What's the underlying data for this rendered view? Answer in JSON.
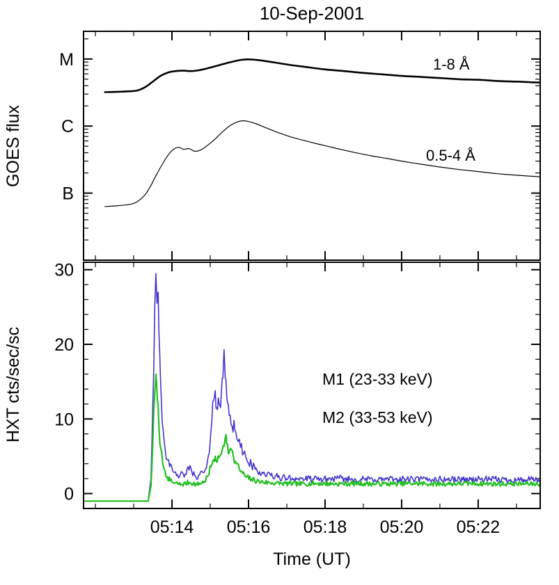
{
  "title": "10-Sep-2001",
  "chart_data": {
    "type": "line",
    "title": "10-Sep-2001",
    "time_unit": "minutes after 05:00 UT",
    "x_axis": {
      "label": "Time (UT)",
      "xlim": [
        11.69,
        23.62
      ],
      "major_ticks": [
        {
          "v": 14,
          "label": "05:14"
        },
        {
          "v": 16,
          "label": "05:16"
        },
        {
          "v": 18,
          "label": "05:18"
        },
        {
          "v": 20,
          "label": "05:20"
        },
        {
          "v": 22,
          "label": "05:22"
        }
      ],
      "minor_ticks": [
        12,
        13,
        15,
        17,
        19,
        21,
        23
      ]
    },
    "panels": [
      {
        "id": "goes",
        "ylabel": "GOES flux",
        "yscale": "log",
        "ylim": [
          1e-08,
          2.59e-05
        ],
        "yticks": [
          {
            "v": 1e-05,
            "label": "M"
          },
          {
            "v": 1e-06,
            "label": "C"
          },
          {
            "v": 1e-07,
            "label": "B"
          }
        ],
        "series": [
          {
            "label": "1-8 Å",
            "color": "#000000",
            "width": 2.6,
            "points": [
              [
                12.25,
                3.2e-06
              ],
              [
                12.6,
                3.25e-06
              ],
              [
                12.9,
                3.3e-06
              ],
              [
                13.1,
                3.4e-06
              ],
              [
                13.3,
                3.8e-06
              ],
              [
                13.5,
                4.6e-06
              ],
              [
                13.7,
                5.6e-06
              ],
              [
                13.9,
                6.3e-06
              ],
              [
                14.1,
                6.6e-06
              ],
              [
                14.3,
                6.7e-06
              ],
              [
                14.5,
                6.6e-06
              ],
              [
                14.7,
                6.8e-06
              ],
              [
                14.9,
                7.2e-06
              ],
              [
                15.2,
                8e-06
              ],
              [
                15.5,
                8.9e-06
              ],
              [
                15.8,
                9.7e-06
              ],
              [
                16.0,
                9.9e-06
              ],
              [
                16.2,
                9.7e-06
              ],
              [
                16.5,
                9.2e-06
              ],
              [
                17.0,
                8.3e-06
              ],
              [
                17.5,
                7.6e-06
              ],
              [
                18.0,
                7e-06
              ],
              [
                18.5,
                6.6e-06
              ],
              [
                19.0,
                6.2e-06
              ],
              [
                19.5,
                5.9e-06
              ],
              [
                20.0,
                5.6e-06
              ],
              [
                20.5,
                5.4e-06
              ],
              [
                21.0,
                5.2e-06
              ],
              [
                21.5,
                5e-06
              ],
              [
                22.0,
                4.9e-06
              ],
              [
                22.5,
                4.7e-06
              ],
              [
                23.0,
                4.6e-06
              ],
              [
                23.4,
                4.5e-06
              ],
              [
                23.62,
                4.45e-06
              ]
            ]
          },
          {
            "label": "0.5-4 Å",
            "color": "#000000",
            "width": 1.2,
            "points": [
              [
                12.25,
                6.3e-08
              ],
              [
                12.6,
                6.5e-08
              ],
              [
                12.9,
                6.8e-08
              ],
              [
                13.1,
                7.5e-08
              ],
              [
                13.3,
                9.5e-08
              ],
              [
                13.45,
                1.3e-07
              ],
              [
                13.6,
                1.9e-07
              ],
              [
                13.75,
                2.7e-07
              ],
              [
                13.9,
                3.7e-07
              ],
              [
                14.0,
                4.3e-07
              ],
              [
                14.1,
                4.7e-07
              ],
              [
                14.2,
                4.8e-07
              ],
              [
                14.3,
                4.5e-07
              ],
              [
                14.45,
                4.6e-07
              ],
              [
                14.6,
                4.2e-07
              ],
              [
                14.75,
                4.4e-07
              ],
              [
                14.9,
                5e-07
              ],
              [
                15.1,
                6.2e-07
              ],
              [
                15.3,
                8e-07
              ],
              [
                15.5,
                1e-06
              ],
              [
                15.7,
                1.15e-06
              ],
              [
                15.85,
                1.2e-06
              ],
              [
                16.0,
                1.17e-06
              ],
              [
                16.2,
                1.08e-06
              ],
              [
                16.5,
                9.2e-07
              ],
              [
                16.8,
                7.9e-07
              ],
              [
                17.1,
                6.9e-07
              ],
              [
                17.4,
                6.2e-07
              ],
              [
                17.7,
                5.6e-07
              ],
              [
                18.0,
                5.1e-07
              ],
              [
                18.4,
                4.5e-07
              ],
              [
                18.8,
                4e-07
              ],
              [
                19.2,
                3.6e-07
              ],
              [
                19.6,
                3.3e-07
              ],
              [
                20.0,
                3e-07
              ],
              [
                20.5,
                2.7e-07
              ],
              [
                21.0,
                2.45e-07
              ],
              [
                21.5,
                2.25e-07
              ],
              [
                22.0,
                2.1e-07
              ],
              [
                22.5,
                1.95e-07
              ],
              [
                23.0,
                1.85e-07
              ],
              [
                23.62,
                1.75e-07
              ]
            ]
          }
        ]
      },
      {
        "id": "hxt",
        "ylabel": "HXT cts/sec/sc",
        "yscale": "linear",
        "ylim": [
          -2,
          31
        ],
        "yticks": [
          {
            "v": 30,
            "label": "30"
          },
          {
            "v": 20,
            "label": "20"
          },
          {
            "v": 10,
            "label": "10"
          },
          {
            "v": 0,
            "label": "0"
          }
        ],
        "series": [
          {
            "label": "M1 (23-33 keV)",
            "color": "#4433cc",
            "width": 1.6,
            "noise_base": 0.25,
            "noise_frac": 0.1,
            "seed": 42,
            "points": [
              [
                11.7,
                -1
              ],
              [
                12.4,
                -1
              ],
              [
                13.0,
                -1
              ],
              [
                13.38,
                -1
              ],
              [
                13.45,
                2
              ],
              [
                13.5,
                12
              ],
              [
                13.55,
                25
              ],
              [
                13.58,
                29.5
              ],
              [
                13.61,
                25.5
              ],
              [
                13.64,
                27
              ],
              [
                13.68,
                19
              ],
              [
                13.72,
                13
              ],
              [
                13.77,
                8.5
              ],
              [
                13.82,
                6
              ],
              [
                13.88,
                4.5
              ],
              [
                13.94,
                3.6
              ],
              [
                14.02,
                3.0
              ],
              [
                14.12,
                2.4
              ],
              [
                14.22,
                2.6
              ],
              [
                14.32,
                2.2
              ],
              [
                14.42,
                3.6
              ],
              [
                14.52,
                2.9
              ],
              [
                14.62,
                2.3
              ],
              [
                14.72,
                2.5
              ],
              [
                14.82,
                2.8
              ],
              [
                14.9,
                3.4
              ],
              [
                14.98,
                5.5
              ],
              [
                15.04,
                9.5
              ],
              [
                15.09,
                12.5
              ],
              [
                15.13,
                13.8
              ],
              [
                15.17,
                11.5
              ],
              [
                15.21,
                12.8
              ],
              [
                15.25,
                11.8
              ],
              [
                15.29,
                13.5
              ],
              [
                15.33,
                15.5
              ],
              [
                15.36,
                19.3
              ],
              [
                15.39,
                15.5
              ],
              [
                15.43,
                13
              ],
              [
                15.47,
                12
              ],
              [
                15.52,
                10.5
              ],
              [
                15.57,
                9
              ],
              [
                15.62,
                9.8
              ],
              [
                15.67,
                8.2
              ],
              [
                15.73,
                7
              ],
              [
                15.79,
                6.2
              ],
              [
                15.87,
                5.4
              ],
              [
                15.95,
                4.6
              ],
              [
                16.08,
                3.8
              ],
              [
                16.22,
                3.1
              ],
              [
                16.38,
                2.7
              ],
              [
                16.58,
                2.4
              ],
              [
                16.88,
                2.1
              ],
              [
                17.3,
                2.0
              ],
              [
                17.8,
                1.9
              ],
              [
                18.3,
                2.0
              ],
              [
                18.8,
                1.9
              ],
              [
                19.3,
                1.9
              ],
              [
                19.8,
                1.9
              ],
              [
                20.3,
                1.9
              ],
              [
                20.8,
                1.9
              ],
              [
                21.3,
                1.9
              ],
              [
                21.8,
                1.9
              ],
              [
                22.3,
                1.9
              ],
              [
                22.8,
                1.85
              ],
              [
                23.3,
                1.85
              ],
              [
                23.62,
                1.8
              ]
            ]
          },
          {
            "label": "M2 (33-53 keV)",
            "color": "#22c022",
            "width": 2.2,
            "noise_base": 0.18,
            "noise_frac": 0.1,
            "seed": 7,
            "points": [
              [
                11.7,
                -1
              ],
              [
                12.4,
                -1
              ],
              [
                13.0,
                -1
              ],
              [
                13.38,
                -1
              ],
              [
                13.45,
                1
              ],
              [
                13.5,
                7
              ],
              [
                13.55,
                13.5
              ],
              [
                13.58,
                16
              ],
              [
                13.62,
                12.5
              ],
              [
                13.66,
                9
              ],
              [
                13.71,
                6
              ],
              [
                13.76,
                4
              ],
              [
                13.82,
                3
              ],
              [
                13.88,
                2.2
              ],
              [
                13.95,
                1.7
              ],
              [
                14.05,
                1.4
              ],
              [
                14.25,
                1.2
              ],
              [
                14.45,
                1.5
              ],
              [
                14.65,
                1.2
              ],
              [
                14.85,
                1.6
              ],
              [
                14.95,
                2.4
              ],
              [
                15.02,
                3.6
              ],
              [
                15.08,
                4.5
              ],
              [
                15.13,
                5.0
              ],
              [
                15.18,
                4.2
              ],
              [
                15.23,
                4.8
              ],
              [
                15.28,
                5.2
              ],
              [
                15.34,
                6.4
              ],
              [
                15.41,
                7.9
              ],
              [
                15.45,
                6.6
              ],
              [
                15.5,
                5.6
              ],
              [
                15.55,
                5.9
              ],
              [
                15.61,
                4.8
              ],
              [
                15.68,
                4.0
              ],
              [
                15.76,
                3.3
              ],
              [
                15.85,
                2.7
              ],
              [
                15.94,
                2.2
              ],
              [
                16.08,
                1.9
              ],
              [
                16.28,
                1.6
              ],
              [
                16.55,
                1.45
              ],
              [
                16.88,
                1.35
              ],
              [
                17.3,
                1.3
              ],
              [
                17.8,
                1.35
              ],
              [
                18.3,
                1.3
              ],
              [
                18.8,
                1.35
              ],
              [
                19.3,
                1.3
              ],
              [
                19.8,
                1.3
              ],
              [
                20.3,
                1.35
              ],
              [
                20.8,
                1.3
              ],
              [
                21.3,
                1.3
              ],
              [
                21.8,
                1.35
              ],
              [
                22.3,
                1.3
              ],
              [
                22.8,
                1.3
              ],
              [
                23.3,
                1.3
              ],
              [
                23.62,
                1.3
              ]
            ]
          }
        ]
      }
    ],
    "grid": false,
    "legend_position": "inside bottom panel, right of second peak"
  }
}
